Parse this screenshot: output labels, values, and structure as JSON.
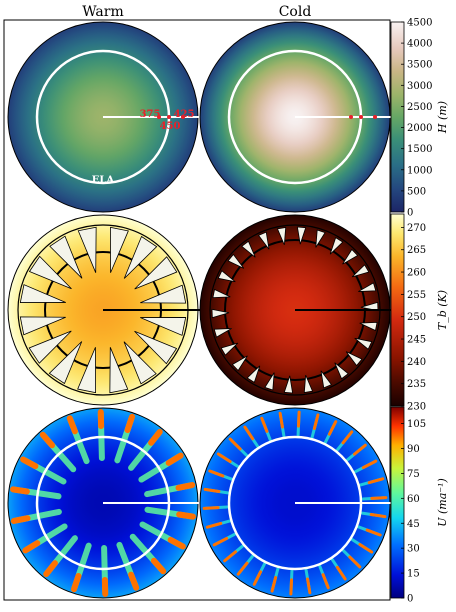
{
  "columns": [
    "Warm",
    "Cold"
  ],
  "chart_data": [
    {
      "type": "heatmap",
      "row": "top",
      "variable_label": "H (m)",
      "colorbar_ticks": [
        0,
        500,
        1000,
        1500,
        2000,
        2500,
        3000,
        3500,
        4000,
        4500
      ],
      "range": [
        0,
        4500
      ],
      "annotations": {
        "ela_label": "ELA",
        "markers": [
          "375",
          "425",
          "450"
        ]
      },
      "panels": [
        {
          "column": "Warm",
          "center_value": 2800,
          "edge_value": 400
        },
        {
          "column": "Cold",
          "center_value": 4500,
          "edge_value": 400
        }
      ],
      "colors": {
        "low": "#1b2a6b",
        "mid": "#4a9a6a",
        "high": "#f5eeee",
        "marker": "#e8202a",
        "line": "#ffffff"
      }
    },
    {
      "type": "heatmap",
      "row": "middle",
      "variable_label": "T_b (K)",
      "colorbar_ticks": [
        230,
        235,
        240,
        245,
        250,
        255,
        260,
        265,
        270
      ],
      "range": [
        230,
        273
      ],
      "panels": [
        {
          "column": "Warm",
          "center_value": 262,
          "edge_value": 273
        },
        {
          "column": "Cold",
          "center_value": 250,
          "edge_value": 231
        }
      ],
      "colors": {
        "low": "#1a0000",
        "mid": "#e03010",
        "high": "#ffffcc",
        "line": "#000000"
      }
    },
    {
      "type": "heatmap",
      "row": "bottom",
      "variable_label": "U (ma⁻¹)",
      "colorbar_ticks": [
        0,
        15,
        30,
        45,
        60,
        75,
        90,
        105
      ],
      "range": [
        0,
        115
      ],
      "panels": [
        {
          "column": "Warm",
          "center_value": 8,
          "edge_value": 40
        },
        {
          "column": "Cold",
          "center_value": 12,
          "edge_value": 35
        }
      ],
      "colors": {
        "low": "#00007f",
        "mid": "#20e0c0",
        "high": "#7f0000",
        "line": "#ffffff"
      }
    }
  ]
}
